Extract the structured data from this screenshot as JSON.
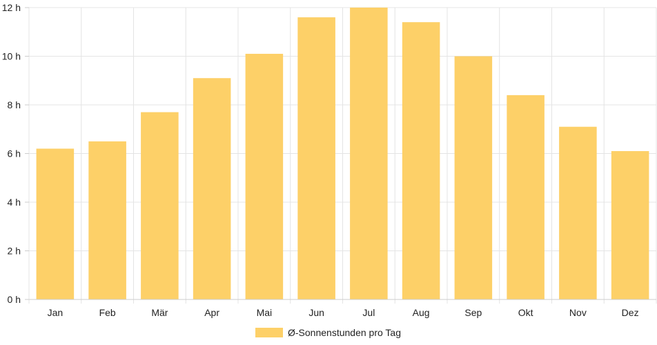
{
  "chart_data": {
    "type": "bar",
    "categories": [
      "Jan",
      "Feb",
      "Mär",
      "Apr",
      "Mai",
      "Jun",
      "Jul",
      "Aug",
      "Sep",
      "Okt",
      "Nov",
      "Dez"
    ],
    "series": [
      {
        "name": "Ø-Sonnenstunden pro Tag",
        "values": [
          6.2,
          6.5,
          7.7,
          9.1,
          10.1,
          11.6,
          12.0,
          11.4,
          10.0,
          8.4,
          7.1,
          6.1
        ],
        "color": "#fdd068"
      }
    ],
    "yticks": [
      "0 h",
      "2 h",
      "4 h",
      "6 h",
      "8 h",
      "10 h",
      "12 h"
    ],
    "ylim": [
      0,
      12
    ],
    "grid": true,
    "legend_position": "bottom"
  }
}
